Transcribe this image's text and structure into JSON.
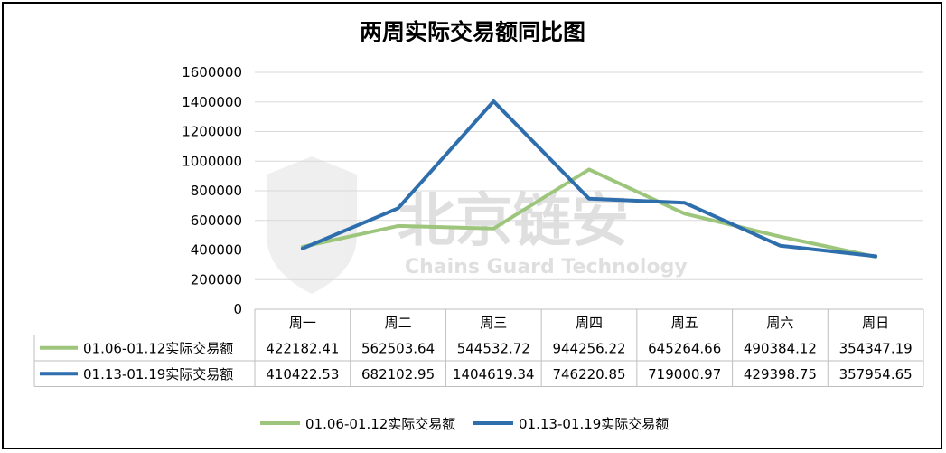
{
  "chart_data": {
    "type": "line",
    "title": "两周实际交易额同比图",
    "categories": [
      "周一",
      "周二",
      "周三",
      "周四",
      "周五",
      "周六",
      "周日"
    ],
    "ylim": [
      0,
      1600000
    ],
    "yticks": [
      0,
      200000,
      400000,
      600000,
      800000,
      1000000,
      1200000,
      1400000,
      1600000
    ],
    "grid": true,
    "legend": "bottom",
    "series": [
      {
        "name": "01.06-01.12实际交易额",
        "color": "#9dc67c",
        "values": [
          422182.41,
          562503.64,
          544532.72,
          944256.22,
          645264.66,
          490384.12,
          354347.19
        ],
        "labels": [
          "422182.41",
          "562503.64",
          "544532.72",
          "944256.22",
          "645264.66",
          "490384.12",
          "354347.19"
        ]
      },
      {
        "name": "01.13-01.19实际交易额",
        "color": "#2e6ead",
        "values": [
          410422.53,
          682102.95,
          1404619.34,
          746220.85,
          719000.97,
          429398.75,
          357954.65
        ],
        "labels": [
          "410422.53",
          "682102.95",
          "1404619.34",
          "746220.85",
          "719000.97",
          "429398.75",
          "357954.65"
        ]
      }
    ]
  },
  "watermark": {
    "text": "北京链安",
    "subtext": "Chains Guard Technology",
    "icon": "shield-logo-icon"
  }
}
